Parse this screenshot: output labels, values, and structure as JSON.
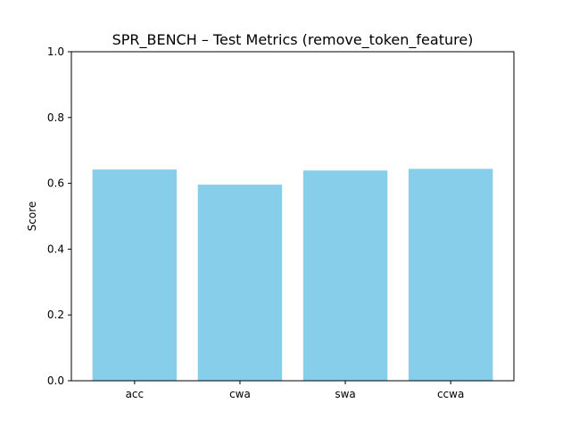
{
  "chart_data": {
    "type": "bar",
    "title": "SPR_BENCH – Test Metrics (remove_token_feature)",
    "xlabel": "",
    "ylabel": "Score",
    "categories": [
      "acc",
      "cwa",
      "swa",
      "ccwa"
    ],
    "values": [
      0.642,
      0.596,
      0.639,
      0.644
    ],
    "ylim": [
      0,
      1.0
    ],
    "yticks": [
      "0.0",
      "0.2",
      "0.4",
      "0.6",
      "0.8",
      "1.0"
    ],
    "bar_color": "#87ceeb",
    "grid": false,
    "legend": false
  }
}
